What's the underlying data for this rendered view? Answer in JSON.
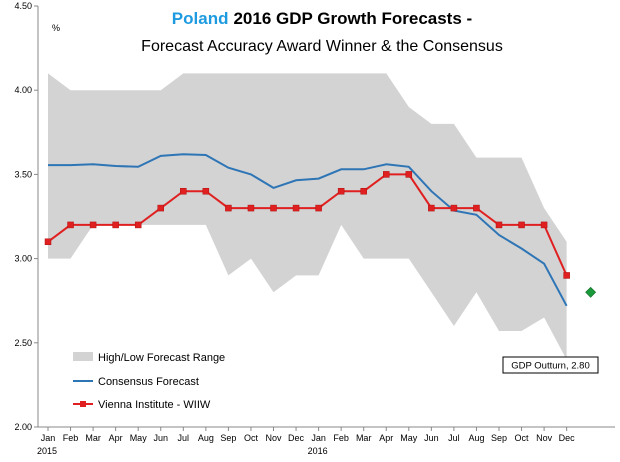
{
  "chart_data": {
    "type": "line",
    "title_highlight": "Poland",
    "title_rest": "2016 GDP Growth Forecasts -",
    "subtitle": "Forecast Accuracy Award Winner & the Consensus",
    "ylabel": "%",
    "ylim": [
      2.0,
      4.5
    ],
    "yticks": [
      "2.00",
      "2.50",
      "3.00",
      "3.50",
      "4.00",
      "4.50"
    ],
    "categories": [
      "Jan",
      "Feb",
      "Mar",
      "Apr",
      "May",
      "Jun",
      "Jul",
      "Aug",
      "Sep",
      "Oct",
      "Nov",
      "Dec",
      "Jan",
      "Feb",
      "Mar",
      "Apr",
      "May",
      "Jun",
      "Jul",
      "Aug",
      "Sep",
      "Oct",
      "Nov",
      "Dec"
    ],
    "year_labels": [
      {
        "index": 0,
        "label": "2015"
      },
      {
        "index": 12,
        "label": "2016"
      }
    ],
    "series": [
      {
        "name": "High/Low Forecast Range",
        "kind": "range",
        "color": "#d3d3d3",
        "high": [
          4.1,
          4.0,
          4.0,
          4.0,
          4.0,
          4.0,
          4.1,
          4.1,
          4.1,
          4.1,
          4.1,
          4.1,
          4.1,
          4.1,
          4.1,
          4.1,
          3.9,
          3.8,
          3.8,
          3.6,
          3.6,
          3.6,
          3.3,
          3.1
        ],
        "low": [
          3.0,
          3.0,
          3.2,
          3.2,
          3.2,
          3.2,
          3.2,
          3.2,
          2.9,
          3.0,
          2.8,
          2.9,
          2.9,
          3.2,
          3.0,
          3.0,
          3.0,
          2.8,
          2.6,
          2.8,
          2.57,
          2.57,
          2.65,
          2.4
        ]
      },
      {
        "name": "Consensus Forecast",
        "kind": "line",
        "color": "#2e75b6",
        "values": [
          3.555,
          3.555,
          3.56,
          3.55,
          3.545,
          3.61,
          3.62,
          3.615,
          3.54,
          3.5,
          3.42,
          3.465,
          3.475,
          3.53,
          3.53,
          3.56,
          3.545,
          3.4,
          3.285,
          3.26,
          3.14,
          3.06,
          2.97,
          2.72
        ]
      },
      {
        "name": "Vienna Institute - WIIW",
        "kind": "line-markers",
        "color": "#e02020",
        "values": [
          3.1,
          3.2,
          3.2,
          3.2,
          3.2,
          3.3,
          3.4,
          3.4,
          3.3,
          3.3,
          3.3,
          3.3,
          3.3,
          3.4,
          3.4,
          3.5,
          3.5,
          3.3,
          3.3,
          3.3,
          3.2,
          3.2,
          3.2,
          2.9
        ]
      }
    ],
    "outturn": {
      "value": 2.8,
      "label": "GDP Outturn, 2.80",
      "color": "#1a9a3a"
    },
    "legend_position": "bottom-left"
  }
}
